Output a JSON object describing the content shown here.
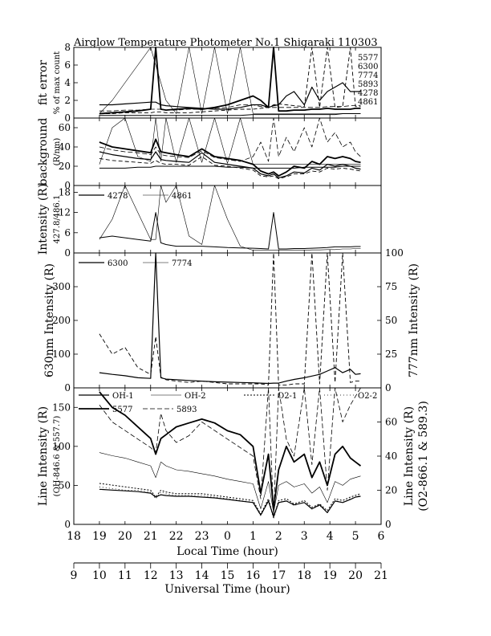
{
  "title": "Airglow Temperature Photometer No.1  Shigaraki  110303",
  "xaxis": {
    "local_label": "Local Time (hour)",
    "local_ticks": [
      "18",
      "19",
      "20",
      "21",
      "22",
      "23",
      "0",
      "1",
      "2",
      "3",
      "4",
      "5",
      "6"
    ],
    "ut_label": "Universal Time (hour)",
    "ut_ticks": [
      "9",
      "10",
      "11",
      "12",
      "13",
      "14",
      "15",
      "16",
      "17",
      "18",
      "19",
      "20",
      "21"
    ]
  },
  "chart_data": [
    {
      "type": "line",
      "panel": "fit-error",
      "ylabel": [
        "fit error",
        "% of max count"
      ],
      "ylim": [
        0,
        8
      ],
      "yticks": [
        "0",
        "2",
        "4",
        "6",
        "8"
      ],
      "legend": [
        "5577",
        "6300",
        "7774",
        "5893",
        "4278",
        "4861"
      ],
      "x": [
        19.0,
        19.5,
        20.0,
        20.5,
        21.0,
        21.2,
        21.4,
        21.6,
        22.0,
        22.5,
        23.0,
        23.5,
        24.0,
        24.5,
        25.0,
        25.3,
        25.6,
        25.8,
        26.0,
        26.3,
        26.6,
        27.0,
        27.3,
        27.6,
        27.9,
        28.2,
        28.5,
        28.8,
        29.0,
        29.2
      ],
      "series": [
        {
          "name": "5577",
          "values": [
            0.5,
            0.6,
            0.7,
            0.8,
            1.0,
            8.0,
            1.0,
            0.9,
            1.0,
            1.1,
            1.0,
            1.2,
            1.5,
            2.0,
            2.5,
            2.0,
            1.2,
            8.0,
            0.8,
            0.8,
            0.9,
            0.9,
            1.0,
            1.0,
            1.1,
            1.0,
            1.0,
            1.0,
            1.1,
            1.1
          ]
        },
        {
          "name": "6300",
          "values": [
            1.5,
            1.5,
            1.6,
            1.7,
            1.8,
            1.8,
            1.5,
            1.4,
            1.3,
            1.2,
            1.1,
            1.0,
            1.0,
            1.2,
            1.5,
            1.5,
            1.2,
            1.4,
            1.5,
            2.5,
            3.0,
            1.5,
            3.5,
            2.0,
            3.0,
            3.5,
            4.0,
            3.0,
            3.0,
            3.0
          ]
        },
        {
          "name": "7774",
          "values": [
            0.5,
            0.5,
            0.6,
            0.6,
            0.6,
            0.7,
            0.7,
            0.6,
            0.6,
            0.6,
            0.7,
            0.8,
            0.9,
            1.0,
            1.0,
            1.1,
            1.2,
            1.5,
            1.6,
            1.5,
            1.4,
            1.3,
            8.0,
            1.2,
            8.0,
            1.2,
            1.3,
            8.0,
            1.3,
            1.3
          ]
        },
        {
          "name": "5893",
          "values": [
            0.8,
            0.8,
            0.9,
            0.9,
            1.0,
            1.0,
            1.0,
            0.9,
            0.9,
            1.0,
            1.0,
            1.1,
            1.2,
            1.5,
            1.5,
            1.3,
            1.2,
            1.2,
            1.2,
            1.2,
            1.2,
            1.2,
            1.2,
            1.2,
            1.3,
            1.3,
            1.3,
            1.4,
            1.4,
            1.4
          ]
        },
        {
          "name": "4278",
          "values": [
            0.3,
            0.3,
            0.3,
            0.3,
            0.3,
            0.3,
            0.3,
            0.3,
            0.3,
            0.3,
            0.3,
            0.3,
            0.3,
            0.3,
            0.4,
            0.4,
            0.4,
            0.4,
            0.4,
            0.4,
            0.4,
            0.4,
            0.4,
            0.4,
            0.4,
            0.4,
            0.5,
            0.5,
            0.5,
            0.5
          ]
        },
        {
          "name": "4861",
          "values": [
            0.5,
            2.0,
            4.0,
            6.0,
            8.0,
            6.0,
            4.0,
            2.0,
            0.5,
            8.0,
            0.5,
            8.0,
            0.5,
            8.0,
            0.5,
            0.5,
            0.5,
            0.5,
            0.5,
            0.5,
            0.5,
            0.5,
            0.5,
            0.5,
            0.5,
            0.5,
            0.5,
            0.5,
            0.5,
            0.5
          ]
        }
      ]
    },
    {
      "type": "line",
      "panel": "background",
      "ylabel": [
        "background",
        "(R/nm)"
      ],
      "ylim": [
        0,
        70
      ],
      "yticks": [
        "0",
        "20",
        "40",
        "60"
      ],
      "x": [
        19.0,
        19.5,
        20.0,
        20.5,
        21.0,
        21.2,
        21.4,
        21.6,
        22.0,
        22.5,
        23.0,
        23.5,
        24.0,
        24.5,
        25.0,
        25.3,
        25.6,
        25.8,
        26.0,
        26.3,
        26.6,
        27.0,
        27.3,
        27.6,
        27.9,
        28.2,
        28.5,
        28.8,
        29.0,
        29.2
      ],
      "series": [
        {
          "name": "5577",
          "values": [
            45,
            40,
            38,
            36,
            34,
            48,
            35,
            34,
            32,
            30,
            38,
            30,
            28,
            26,
            22,
            15,
            12,
            14,
            10,
            14,
            20,
            18,
            25,
            22,
            30,
            28,
            30,
            28,
            25,
            24
          ]
        },
        {
          "name": "6300",
          "values": [
            35,
            32,
            30,
            28,
            27,
            35,
            27,
            26,
            25,
            24,
            34,
            24,
            22,
            20,
            18,
            12,
            10,
            12,
            8,
            10,
            14,
            13,
            18,
            16,
            22,
            20,
            22,
            20,
            18,
            17
          ]
        },
        {
          "name": "7774",
          "values": [
            28,
            26,
            25,
            24,
            23,
            26,
            23,
            22,
            22,
            21,
            30,
            21,
            20,
            18,
            16,
            10,
            9,
            10,
            7,
            9,
            12,
            12,
            15,
            14,
            18,
            17,
            18,
            17,
            16,
            15
          ]
        },
        {
          "name": "5893",
          "values": [
            40,
            37,
            35,
            34,
            32,
            40,
            32,
            31,
            30,
            29,
            36,
            29,
            27,
            25,
            30,
            45,
            25,
            70,
            30,
            50,
            35,
            60,
            40,
            70,
            45,
            55,
            40,
            45,
            35,
            30
          ]
        },
        {
          "name": "4278",
          "values": [
            18,
            18,
            18,
            19,
            19,
            20,
            20,
            20,
            20,
            20,
            20,
            20,
            19,
            19,
            18,
            18,
            18,
            18,
            18,
            18,
            18,
            19,
            19,
            19,
            19,
            19,
            20,
            20,
            20,
            20
          ]
        },
        {
          "name": "4861",
          "values": [
            22,
            60,
            70,
            30,
            25,
            70,
            25,
            70,
            24,
            70,
            24,
            70,
            23,
            70,
            22,
            22,
            22,
            22,
            22,
            22,
            22,
            22,
            22,
            22,
            22,
            22,
            22,
            22,
            22,
            22
          ]
        }
      ]
    },
    {
      "type": "line",
      "panel": "427.8/486.1",
      "ylabel": [
        "Intensity (R)",
        "427.8/486.1"
      ],
      "ylim": [
        0,
        20
      ],
      "yticks": [
        "0",
        "6",
        "12",
        "18"
      ],
      "x": [
        19.0,
        19.5,
        20.0,
        20.5,
        21.0,
        21.2,
        21.4,
        21.6,
        22.0,
        22.5,
        23.0,
        23.5,
        24.0,
        24.5,
        25.0,
        25.3,
        25.6,
        25.8,
        26.0,
        26.3,
        26.6,
        27.0,
        27.3,
        27.6,
        27.9,
        28.2,
        28.5,
        28.8,
        29.0,
        29.2
      ],
      "series": [
        {
          "name": "4278",
          "values": [
            4.5,
            5.0,
            4.5,
            4.0,
            3.5,
            12.0,
            3.0,
            2.5,
            2.0,
            2.0,
            2.0,
            1.8,
            1.6,
            1.5,
            1.4,
            1.3,
            1.2,
            12.0,
            1.2,
            1.2,
            1.3,
            1.3,
            1.4,
            1.5,
            1.6,
            1.8,
            1.8,
            1.8,
            1.9,
            1.9
          ]
        },
        {
          "name": "4861",
          "values": [
            4.0,
            10.0,
            20.0,
            12.0,
            4.0,
            4.0,
            20.0,
            15.0,
            20.0,
            5.0,
            2.5,
            20.0,
            10.0,
            2.0,
            0.8,
            0.8,
            0.8,
            0.8,
            0.8,
            0.8,
            0.8,
            0.8,
            0.9,
            0.9,
            1.0,
            1.0,
            1.2,
            1.2,
            1.3,
            1.3
          ]
        }
      ]
    },
    {
      "type": "line",
      "panel": "630/777",
      "ylabel": "630nm Intensity (R)",
      "ylabel_right": "777nm Intensity (R)",
      "ylim": [
        0,
        400
      ],
      "ylim_right": [
        0,
        100
      ],
      "yticks": [
        "0",
        "100",
        "200",
        "300"
      ],
      "yticks_right": [
        "0",
        "25",
        "50",
        "75",
        "100"
      ],
      "x": [
        19.0,
        19.5,
        20.0,
        20.5,
        21.0,
        21.2,
        21.4,
        21.6,
        22.0,
        22.5,
        23.0,
        23.5,
        24.0,
        24.5,
        25.0,
        25.3,
        25.6,
        25.8,
        26.0,
        26.3,
        26.6,
        27.0,
        27.3,
        27.6,
        27.9,
        28.2,
        28.5,
        28.8,
        29.0,
        29.2
      ],
      "series": [
        {
          "name": "6300",
          "axis": "left",
          "values": [
            45,
            40,
            36,
            30,
            28,
            400,
            30,
            26,
            24,
            22,
            20,
            18,
            17,
            16,
            15,
            14,
            13,
            14,
            14,
            20,
            25,
            30,
            35,
            40,
            50,
            60,
            45,
            55,
            40,
            42
          ]
        },
        {
          "name": "7774",
          "axis": "right",
          "values": [
            40,
            25,
            30,
            15,
            10,
            38,
            8,
            6,
            5,
            4,
            5,
            4,
            3,
            3,
            3,
            3,
            2,
            100,
            2,
            2,
            3,
            3,
            100,
            3,
            100,
            4,
            100,
            4,
            5,
            5
          ]
        }
      ]
    },
    {
      "type": "line",
      "panel": "line-intensity",
      "ylabel": [
        "Line Intensity (R)",
        "(OH-846.6 & 557.7)"
      ],
      "ylabel_right": [
        "Line Intensity (R)",
        "(O2-866.1 & 589.3)"
      ],
      "ylim": [
        0,
        175
      ],
      "ylim_right": [
        0,
        80
      ],
      "yticks": [
        "0",
        "50",
        "100",
        "150"
      ],
      "yticks_right": [
        "0",
        "20",
        "40",
        "60"
      ],
      "legend": [
        "OH-1",
        "OH-2",
        "O2-1",
        "O2-2",
        "5577",
        "5893"
      ],
      "x": [
        19.0,
        19.5,
        20.0,
        20.5,
        21.0,
        21.2,
        21.4,
        21.6,
        22.0,
        22.5,
        23.0,
        23.5,
        24.0,
        24.5,
        25.0,
        25.3,
        25.6,
        25.8,
        26.0,
        26.3,
        26.6,
        27.0,
        27.3,
        27.6,
        27.9,
        28.2,
        28.5,
        28.8,
        29.0,
        29.2
      ],
      "series": [
        {
          "name": "OH-1",
          "axis": "left",
          "values": [
            45,
            44,
            43,
            42,
            40,
            35,
            38,
            37,
            36,
            36,
            35,
            34,
            32,
            30,
            28,
            12,
            30,
            10,
            28,
            30,
            25,
            28,
            20,
            25,
            15,
            30,
            28,
            32,
            35,
            36
          ]
        },
        {
          "name": "OH-2",
          "axis": "left",
          "values": [
            92,
            88,
            85,
            80,
            75,
            60,
            80,
            75,
            70,
            68,
            65,
            62,
            58,
            55,
            52,
            20,
            55,
            15,
            50,
            55,
            48,
            52,
            40,
            48,
            28,
            55,
            50,
            58,
            60,
            62
          ]
        },
        {
          "name": "O2-1",
          "axis": "right",
          "values": [
            24,
            23,
            22,
            21,
            20,
            16,
            20,
            19,
            18,
            18,
            18,
            17,
            16,
            15,
            14,
            6,
            15,
            4,
            14,
            15,
            12,
            14,
            10,
            12,
            8,
            15,
            14,
            16,
            17,
            18
          ]
        },
        {
          "name": "O2-2",
          "axis": "right",
          "values": [
            22,
            21,
            20,
            20,
            19,
            15,
            19,
            18,
            17,
            17,
            17,
            16,
            15,
            14,
            13,
            5,
            14,
            3,
            13,
            14,
            11,
            13,
            9,
            11,
            7,
            14,
            13,
            15,
            16,
            17
          ]
        },
        {
          "name": "5577",
          "axis": "left",
          "values": [
            170,
            150,
            140,
            125,
            110,
            90,
            110,
            115,
            125,
            130,
            135,
            130,
            120,
            115,
            100,
            40,
            90,
            20,
            70,
            100,
            80,
            90,
            60,
            80,
            50,
            90,
            100,
            85,
            80,
            75
          ]
        },
        {
          "name": "5893",
          "axis": "right",
          "values": [
            70,
            60,
            55,
            50,
            45,
            42,
            65,
            55,
            48,
            52,
            60,
            55,
            50,
            45,
            40,
            15,
            80,
            5,
            80,
            50,
            40,
            80,
            35,
            80,
            20,
            80,
            60,
            70,
            75,
            80
          ]
        }
      ]
    }
  ]
}
